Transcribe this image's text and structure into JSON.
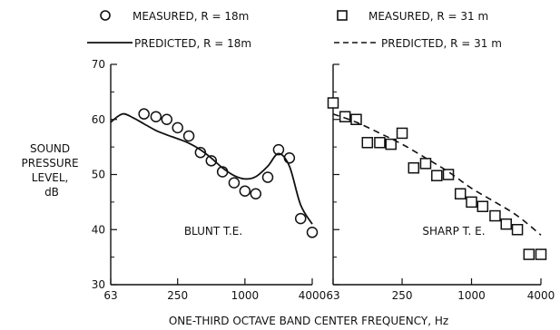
{
  "legend": {
    "measured_18": "MEASURED, R = 18m",
    "predicted_18": "PREDICTED, R = 18m",
    "measured_31": "MEASURED, R = 31 m",
    "predicted_31": "PREDICTED, R = 31 m"
  },
  "ylabel_lines": [
    "SOUND",
    "PRESSURE",
    "LEVEL,",
    "dB"
  ],
  "xlabel": "ONE-THIRD OCTAVE BAND CENTER FREQUENCY, Hz",
  "colors": {
    "ink": "#111111",
    "background": "#ffffff"
  },
  "chart_data": [
    {
      "type": "scatter",
      "panel_label": "BLUNT T.E.",
      "x_scale": "log",
      "xlim": [
        63,
        4000
      ],
      "ylim": [
        30,
        70
      ],
      "xticks": [
        63,
        250,
        1000,
        4000
      ],
      "yticks": [
        30,
        40,
        50,
        60,
        70
      ],
      "series": [
        {
          "name": "MEASURED, R = 18m",
          "kind": "markers",
          "marker": "circle",
          "points": [
            [
              125,
              61
            ],
            [
              160,
              60.5
            ],
            [
              200,
              60
            ],
            [
              250,
              58.5
            ],
            [
              315,
              57
            ],
            [
              400,
              54
            ],
            [
              500,
              52.5
            ],
            [
              630,
              50.5
            ],
            [
              800,
              48.5
            ],
            [
              1000,
              47
            ],
            [
              1250,
              46.5
            ],
            [
              1600,
              49.5
            ],
            [
              2000,
              54.5
            ],
            [
              2500,
              53
            ],
            [
              3150,
              42
            ],
            [
              4000,
              39.5
            ]
          ]
        },
        {
          "name": "PREDICTED, R = 18m",
          "kind": "line",
          "style": "solid",
          "points": [
            [
              63,
              59.5
            ],
            [
              80,
              61
            ],
            [
              100,
              60.3
            ],
            [
              125,
              59.2
            ],
            [
              160,
              58
            ],
            [
              200,
              57.2
            ],
            [
              250,
              56.5
            ],
            [
              315,
              55.7
            ],
            [
              400,
              54.5
            ],
            [
              500,
              53
            ],
            [
              630,
              51.2
            ],
            [
              800,
              49.8
            ],
            [
              1000,
              49.2
            ],
            [
              1250,
              49.6
            ],
            [
              1600,
              51.5
            ],
            [
              2000,
              53.8
            ],
            [
              2500,
              51.5
            ],
            [
              3150,
              44.5
            ],
            [
              4000,
              41
            ]
          ]
        }
      ]
    },
    {
      "type": "scatter",
      "panel_label": "SHARP T. E.",
      "x_scale": "log",
      "xlim": [
        63,
        4000
      ],
      "ylim": [
        30,
        70
      ],
      "xticks": [
        63,
        250,
        1000,
        4000
      ],
      "yticks": [
        30,
        40,
        50,
        60,
        70
      ],
      "series": [
        {
          "name": "MEASURED, R = 31 m",
          "kind": "markers",
          "marker": "square",
          "points": [
            [
              63,
              63
            ],
            [
              80,
              60.5
            ],
            [
              100,
              60
            ],
            [
              125,
              55.8
            ],
            [
              160,
              55.8
            ],
            [
              200,
              55.5
            ],
            [
              250,
              57.5
            ],
            [
              315,
              51.2
            ],
            [
              400,
              52
            ],
            [
              500,
              49.8
            ],
            [
              630,
              50
            ],
            [
              800,
              46.5
            ],
            [
              1000,
              45
            ],
            [
              1250,
              44.2
            ],
            [
              1600,
              42.5
            ],
            [
              2000,
              41
            ],
            [
              2500,
              40
            ],
            [
              3150,
              35.5
            ],
            [
              4000,
              35.5
            ]
          ]
        },
        {
          "name": "PREDICTED, R = 31 m",
          "kind": "line",
          "style": "dashed",
          "points": [
            [
              63,
              61
            ],
            [
              100,
              59.5
            ],
            [
              160,
              57.5
            ],
            [
              250,
              55.5
            ],
            [
              400,
              53
            ],
            [
              630,
              50.5
            ],
            [
              1000,
              47.5
            ],
            [
              1600,
              45
            ],
            [
              2500,
              42.5
            ],
            [
              4000,
              39
            ]
          ]
        }
      ]
    }
  ]
}
